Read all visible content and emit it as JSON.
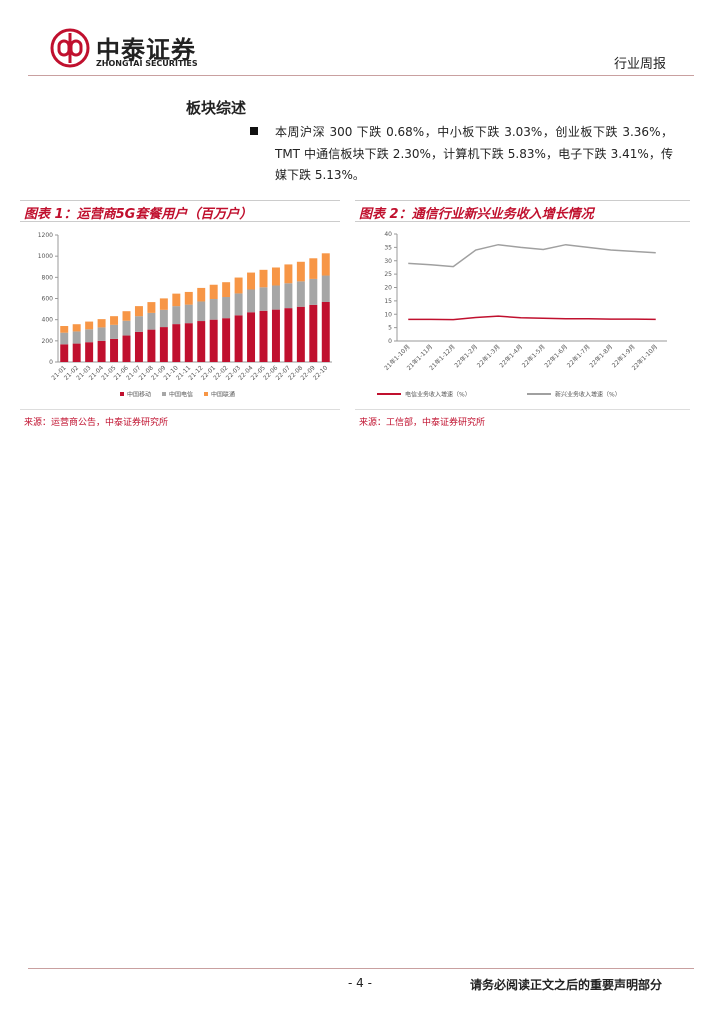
{
  "header": {
    "company": "中泰证券",
    "company_en": "ZHONGTAI SECURITIES",
    "report_type": "行业周报"
  },
  "section": {
    "title": "板块综述",
    "bullets": [
      "本周沪深 300 下跌 0.68%，中小板下跌 3.03%，创业板下跌 3.36%，TMT 中通信板块下跌 2.30%，计算机下跌 5.83%，电子下跌 3.41%，传媒下跌 5.13%。"
    ]
  },
  "chart_data": [
    {
      "type": "bar",
      "stacked": true,
      "title": "图表 1：运营商5G套餐用户（百万户）",
      "source": "来源：运营商公告，中泰证券研究所",
      "categories": [
        "21-01",
        "21-02",
        "21-03",
        "21-04",
        "21-05",
        "21-06",
        "21-07",
        "21-08",
        "21-09",
        "21-10",
        "21-11",
        "21-12",
        "22-01",
        "22-02",
        "22-03",
        "22-04",
        "22-05",
        "22-06",
        "22-07",
        "22-08",
        "22-09",
        "22-10"
      ],
      "series": [
        {
          "name": "中国移动",
          "color": "#c0102e",
          "values": [
            167,
            174,
            187,
            200,
            218,
            250,
            285,
            306,
            330,
            358,
            367,
            387,
            400,
            414,
            441,
            470,
            484,
            495,
            509,
            522,
            540,
            567
          ]
        },
        {
          "name": "中国电信",
          "color": "#a6a6a6",
          "values": [
            110,
            115,
            122,
            127,
            133,
            140,
            148,
            158,
            163,
            170,
            175,
            185,
            195,
            200,
            207,
            215,
            222,
            228,
            235,
            240,
            245,
            250
          ]
        },
        {
          "name": "中国联通",
          "color": "#f79646",
          "values": [
            63,
            68,
            73,
            78,
            82,
            90,
            95,
            102,
            108,
            118,
            120,
            128,
            135,
            140,
            150,
            160,
            165,
            170,
            178,
            185,
            195,
            210
          ]
        }
      ],
      "ylim": [
        0,
        1200
      ],
      "yticks": [
        0,
        200,
        400,
        600,
        800,
        1000,
        1200
      ]
    },
    {
      "type": "line",
      "title": "图表 2：通信行业新兴业务收入增长情况",
      "source": "来源：工信部，中泰证券研究所",
      "categories": [
        "21年1-10月",
        "21年1-11月",
        "21年1-12月",
        "22年1-2月",
        "22年1-3月",
        "22年1-4月",
        "22年1-5月",
        "22年1-6月",
        "22年1-7月",
        "22年1-8月",
        "22年1-9月",
        "22年1-10月"
      ],
      "series": [
        {
          "name": "电信业务收入增速（%）",
          "color": "#c0102e",
          "values": [
            8.1,
            8.1,
            8.0,
            8.8,
            9.3,
            8.7,
            8.5,
            8.3,
            8.3,
            8.2,
            8.2,
            8.1
          ]
        },
        {
          "name": "新兴业务收入增速（%）",
          "color": "#a0a0a0",
          "values": [
            29,
            28.5,
            27.8,
            34,
            36,
            35,
            34.2,
            36,
            35,
            34,
            33.5,
            33
          ]
        }
      ],
      "ylim": [
        0,
        40
      ],
      "yticks": [
        0,
        5,
        10,
        15,
        20,
        25,
        30,
        35,
        40
      ]
    }
  ],
  "footer": {
    "page": "- 4 -",
    "disclaimer": "请务必阅读正文之后的重要声明部分"
  }
}
